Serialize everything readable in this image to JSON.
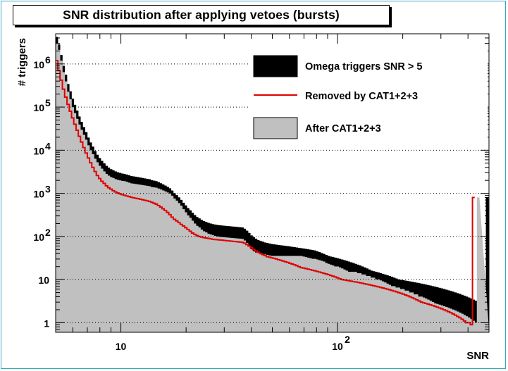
{
  "chart_data": {
    "type": "histogram",
    "title": "SNR distribution after applying vetoes (bursts)",
    "xlabel": "SNR",
    "ylabel": "# triggers",
    "x_scale": "log",
    "y_scale": "log",
    "xlim": [
      5,
      500
    ],
    "ylim": [
      0.6,
      5000000
    ],
    "x_ticks": [
      {
        "value": 10,
        "base": "10",
        "exp": ""
      },
      {
        "value": 100,
        "base": "10",
        "exp": "2"
      }
    ],
    "y_ticks": [
      {
        "value": 1,
        "base": "1",
        "exp": ""
      },
      {
        "value": 10,
        "base": "10",
        "exp": ""
      },
      {
        "value": 100,
        "base": "10",
        "exp": "2"
      },
      {
        "value": 1000,
        "base": "10",
        "exp": "3"
      },
      {
        "value": 10000,
        "base": "10",
        "exp": "4"
      },
      {
        "value": 100000,
        "base": "10",
        "exp": "5"
      },
      {
        "value": 1000000,
        "base": "10",
        "exp": "6"
      }
    ],
    "grid_y": true,
    "legend": [
      {
        "label": "Omega triggers SNR > 5",
        "style": "fill",
        "color": "#000000"
      },
      {
        "label": "Removed by CAT1+2+3",
        "style": "line",
        "color": "#e00000"
      },
      {
        "label": "After CAT1+2+3",
        "style": "fill",
        "color": "#c0c0c0"
      }
    ],
    "bin_edges": [
      5,
      5.12,
      5.24,
      5.37,
      5.5,
      5.64,
      5.78,
      5.92,
      6.06,
      6.21,
      6.36,
      6.51,
      6.67,
      6.83,
      7.0,
      7.17,
      7.34,
      7.52,
      7.7,
      7.89,
      8.08,
      8.28,
      8.48,
      8.69,
      8.9,
      9.12,
      9.34,
      9.57,
      9.8,
      10.04,
      10.28,
      10.53,
      10.79,
      11.05,
      11.32,
      11.6,
      11.88,
      12.17,
      12.47,
      12.77,
      13.08,
      13.4,
      13.73,
      14.06,
      14.4,
      14.75,
      15.11,
      15.48,
      15.86,
      16.25,
      16.64,
      17.05,
      17.46,
      17.89,
      18.33,
      18.77,
      19.23,
      19.7,
      20.18,
      20.67,
      21.17,
      21.69,
      22.22,
      22.76,
      23.31,
      23.88,
      24.46,
      25.06,
      25.67,
      26.29,
      26.93,
      27.59,
      28.26,
      28.95,
      29.66,
      30.38,
      31.12,
      31.88,
      32.66,
      33.45,
      34.27,
      35.1,
      35.96,
      36.83,
      37.73,
      38.65,
      39.59,
      40.56,
      41.55,
      42.56,
      43.6,
      44.66,
      45.75,
      46.87,
      48.01,
      49.18,
      50.38,
      51.61,
      52.86,
      54.15,
      55.47,
      56.82,
      58.21,
      59.63,
      61.08,
      62.57,
      64.09,
      65.66,
      67.26,
      68.9,
      70.58,
      72.3,
      74.06,
      75.86,
      77.71,
      79.6,
      81.54,
      83.53,
      85.57,
      87.65,
      89.79,
      91.98,
      94.22,
      96.52,
      98.87,
      101.28,
      103.75,
      106.28,
      108.87,
      111.52,
      114.24,
      117.03,
      119.88,
      122.8,
      125.8,
      128.86,
      132.0,
      135.22,
      138.52,
      141.9,
      145.36,
      148.9,
      152.53,
      156.25,
      160.06,
      163.96,
      167.96,
      172.05,
      176.25,
      180.55,
      184.95,
      189.46,
      194.08,
      198.81,
      203.66,
      208.62,
      213.71,
      218.92,
      224.26,
      229.73,
      235.33,
      241.06,
      246.94,
      252.96,
      259.13,
      265.45,
      271.93,
      278.56,
      285.35,
      292.3,
      299.43,
      306.73,
      314.21,
      321.87,
      329.72,
      337.76,
      346.0,
      354.44,
      363.08,
      371.93,
      381.0,
      390.29,
      399.81,
      409.56,
      419.54,
      429.77,
      440.25,
      450.98,
      461.98,
      473.24,
      484.78,
      496.6,
      500
    ],
    "series": [
      {
        "name": "Omega triggers SNR > 5",
        "values": [
          4200000,
          2800000,
          1600000,
          900000,
          560000,
          340000,
          230000,
          155000,
          112000,
          82000,
          60000,
          45000,
          34000,
          26000,
          19500,
          15000,
          12000,
          9500,
          7800,
          6500,
          5600,
          4900,
          4300,
          3900,
          3600,
          3400,
          3200,
          3050,
          2950,
          2850,
          2800,
          2700,
          2600,
          2500,
          2450,
          2400,
          2350,
          2300,
          2250,
          2200,
          2150,
          2100,
          2000,
          1950,
          1900,
          1800,
          1700,
          1600,
          1500,
          1400,
          1300,
          1150,
          1000,
          900,
          800,
          700,
          600,
          520,
          450,
          400,
          350,
          310,
          280,
          260,
          240,
          225,
          215,
          205,
          198,
          192,
          187,
          183,
          180,
          178,
          176,
          174,
          172,
          170,
          168,
          166,
          164,
          162,
          160,
          150,
          135,
          120,
          105,
          95,
          88,
          82,
          78,
          75,
          72,
          70,
          68,
          66,
          65,
          64,
          63,
          62,
          61,
          60,
          59,
          58,
          57,
          56,
          55,
          54,
          53,
          52,
          51,
          50,
          49,
          48,
          47,
          45,
          43,
          41,
          39,
          37,
          35,
          34,
          33,
          32,
          31,
          30,
          29,
          28,
          27,
          26,
          25,
          24,
          23,
          22,
          21,
          20,
          19,
          18,
          17,
          16,
          15.5,
          15,
          14.5,
          14,
          13.5,
          13,
          12.5,
          12,
          11.5,
          11,
          10.5,
          10,
          9.8,
          9.6,
          9.4,
          9.2,
          9.0,
          8.8,
          8.6,
          8.4,
          8.2,
          8.0,
          7.8,
          7.6,
          7.4,
          7.2,
          7.0,
          6.8,
          6.6,
          6.4,
          6.2,
          6.0,
          5.8,
          5.6,
          5.4,
          5.2,
          5.0,
          4.8,
          4.6,
          4.4,
          4.2,
          4.0,
          3.8,
          3.6,
          3.4,
          3.2,
          3.0,
          2.8,
          2.6,
          2.4,
          800
        ]
      },
      {
        "name": "Removed by CAT1+2+3",
        "values": [
          1200000,
          700000,
          420000,
          260000,
          170000,
          115000,
          80000,
          56000,
          40000,
          29000,
          21000,
          15500,
          11500,
          8600,
          6600,
          5100,
          4000,
          3200,
          2600,
          2200,
          1900,
          1700,
          1500,
          1350,
          1250,
          1150,
          1080,
          1020,
          970,
          930,
          900,
          870,
          840,
          810,
          790,
          770,
          750,
          730,
          710,
          690,
          670,
          650,
          620,
          590,
          560,
          520,
          480,
          440,
          400,
          360,
          320,
          280,
          250,
          230,
          210,
          190,
          175,
          160,
          145,
          132,
          120,
          112,
          105,
          100,
          97,
          94,
          92,
          90,
          88,
          86,
          85,
          84,
          83,
          82,
          81,
          80,
          79,
          78,
          77,
          76,
          75,
          74,
          73,
          70,
          65,
          60,
          55,
          50,
          46,
          43,
          40,
          38,
          36,
          34,
          33,
          32,
          31,
          30,
          29,
          28,
          27,
          26,
          25,
          24,
          23,
          22,
          21,
          20,
          19,
          18.5,
          18,
          17.5,
          17,
          16.5,
          16,
          15.5,
          15,
          14.5,
          14,
          13.5,
          13,
          12.5,
          12,
          11.5,
          11,
          10.5,
          10,
          9.8,
          9.6,
          9.4,
          9.2,
          9.0,
          8.8,
          8.6,
          8.4,
          8.2,
          8.0,
          7.8,
          7.6,
          7.4,
          7.2,
          7.0,
          6.8,
          6.6,
          6.4,
          6.2,
          6.0,
          5.8,
          5.6,
          5.4,
          5.2,
          5.0,
          4.8,
          4.6,
          4.4,
          4.2,
          4.0,
          3.8,
          3.6,
          3.4,
          3.2,
          3.0,
          2.9,
          2.8,
          2.7,
          2.6,
          2.5,
          2.4,
          2.3,
          2.2,
          2.1,
          2.0,
          1.9,
          1.8,
          1.7,
          1.6,
          1.5,
          1.4,
          1.3,
          1.2,
          1.1,
          1.0,
          1.0,
          0.9,
          800
        ]
      },
      {
        "name": "After CAT1+2+3",
        "values": [
          3000000,
          2100000,
          1180000,
          640000,
          390000,
          225000,
          150000,
          99000,
          72000,
          53000,
          39000,
          29500,
          22500,
          17400,
          12900,
          9900,
          8000,
          6300,
          5200,
          4300,
          3700,
          3200,
          2800,
          2550,
          2350,
          2250,
          2120,
          2030,
          1980,
          1920,
          1900,
          1830,
          1760,
          1690,
          1660,
          1630,
          1600,
          1570,
          1540,
          1510,
          1480,
          1450,
          1380,
          1360,
          1340,
          1280,
          1220,
          1160,
          1100,
          1040,
          980,
          870,
          750,
          670,
          590,
          510,
          425,
          360,
          305,
          268,
          230,
          198,
          175,
          160,
          143,
          131,
          123,
          115,
          110,
          106,
          102,
          99,
          97,
          96,
          95,
          94,
          93,
          92,
          91,
          90,
          89,
          88,
          87,
          80,
          70,
          60,
          50,
          45,
          42,
          42,
          40,
          39,
          38,
          37,
          36,
          35,
          35,
          35,
          35,
          35,
          35,
          35,
          35,
          35,
          35,
          35,
          35,
          35,
          35,
          34,
          33,
          32,
          31,
          30,
          30,
          29,
          28,
          27,
          26,
          24,
          23,
          22,
          21,
          20,
          20,
          19,
          18,
          17,
          16,
          15,
          15,
          15,
          15,
          14,
          14,
          13,
          13,
          12,
          12,
          11,
          11,
          10,
          10,
          9.5,
          9.0,
          8.5,
          8.0,
          7.5,
          7.0,
          7.0,
          6.5,
          6.5,
          6.0,
          6.0,
          5.5,
          5.5,
          5.0,
          5.0,
          4.5,
          4.5,
          4.0,
          4.0,
          3.8,
          3.6,
          3.4,
          3.2,
          3.0,
          2.8,
          2.7,
          2.6,
          2.5,
          2.4,
          2.3,
          2.2,
          2.1,
          2.0,
          1.9,
          1.8,
          1.7,
          1.6,
          1.5,
          1.4,
          1.3,
          1.2,
          1.1,
          1.0,
          800
        ]
      }
    ]
  }
}
